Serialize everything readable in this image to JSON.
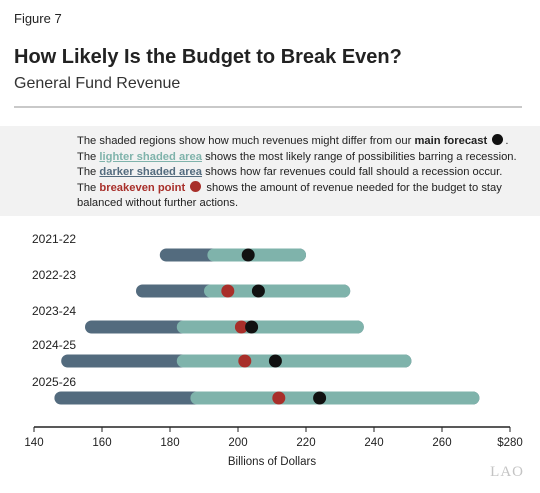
{
  "figure_label": "Figure 7",
  "title": "How Likely Is the Budget to Break Even?",
  "subtitle": "General Fund Revenue",
  "legend": {
    "line1_a": "The shaded regions show how much revenues might differ from our ",
    "line1_kw": "main forecast",
    "line1_b": ".",
    "line2_a": "The ",
    "line2_kw": "lighter shaded area",
    "line2_b": " shows the most likely range of possibilities barring a recession.",
    "line3_a": "The ",
    "line3_kw": "darker shaded area",
    "line3_b": " shows how far revenues could fall should a recession occur.",
    "line4_a": "The ",
    "line4_kw": "breakeven point",
    "line4_b": " shows the amount of revenue needed for the budget to stay balanced without further actions."
  },
  "watermark": "LAO",
  "colors": {
    "dark": "#536b7e",
    "light": "#7fb3ab",
    "forecast": "#111111",
    "breakeven": "#a82f2a"
  },
  "chart_data": {
    "type": "range",
    "xlabel": "Billions of Dollars",
    "xlim": [
      140,
      280
    ],
    "xticks": [
      140,
      160,
      180,
      200,
      220,
      240,
      260,
      280
    ],
    "xtick_labels": [
      "140",
      "160",
      "180",
      "200",
      "220",
      "240",
      "260",
      "$280"
    ],
    "rows": [
      {
        "label": "2021-22",
        "dark_start": 177,
        "light_start": 191,
        "light_end": 220,
        "forecast": 203,
        "breakeven": null
      },
      {
        "label": "2022-23",
        "dark_start": 170,
        "light_start": 190,
        "light_end": 233,
        "forecast": 206,
        "breakeven": 197
      },
      {
        "label": "2023-24",
        "dark_start": 155,
        "light_start": 182,
        "light_end": 237,
        "forecast": 204,
        "breakeven": 201
      },
      {
        "label": "2024-25",
        "dark_start": 148,
        "light_start": 182,
        "light_end": 251,
        "forecast": 211,
        "breakeven": 202
      },
      {
        "label": "2025-26",
        "dark_start": 146,
        "light_start": 186,
        "light_end": 271,
        "forecast": 224,
        "breakeven": 212
      }
    ]
  }
}
